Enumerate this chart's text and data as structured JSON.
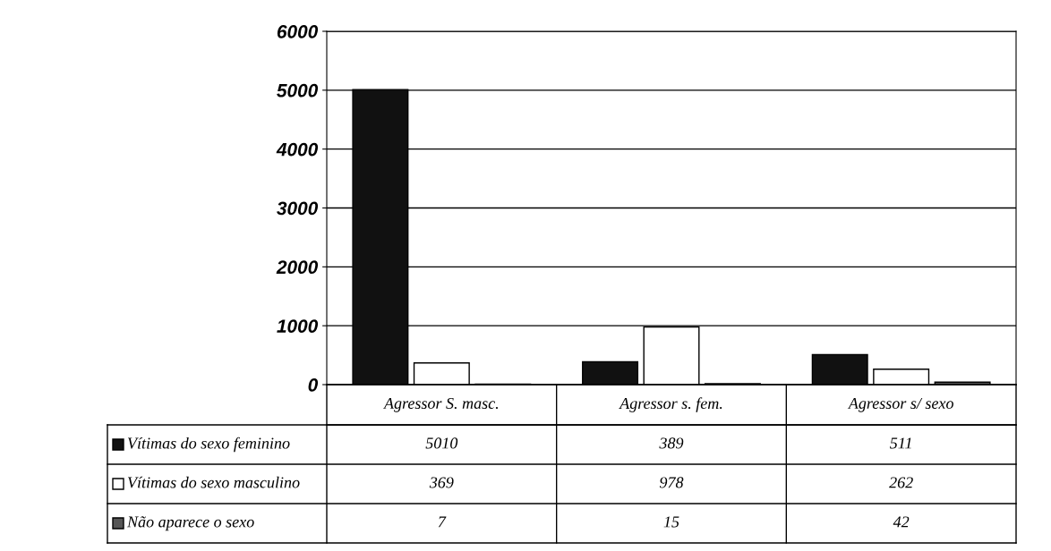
{
  "chart_data": {
    "type": "bar",
    "categories": [
      "Agressor S. masc.",
      "Agressor s. fem.",
      "Agressor s/ sexo"
    ],
    "series": [
      {
        "name": "Vítimas do sexo feminino",
        "color": "#111111",
        "values": [
          5010,
          389,
          511
        ]
      },
      {
        "name": "Vítimas do sexo masculino",
        "color": "#ffffff",
        "values": [
          369,
          978,
          262
        ]
      },
      {
        "name": "Não aparece o sexo",
        "color": "#555555",
        "values": [
          7,
          15,
          42
        ]
      }
    ],
    "ylim": [
      0,
      6000
    ],
    "yticks": [
      0,
      1000,
      2000,
      3000,
      4000,
      5000,
      6000
    ],
    "grid": "y",
    "legend": "bottom",
    "data_labels": true
  }
}
